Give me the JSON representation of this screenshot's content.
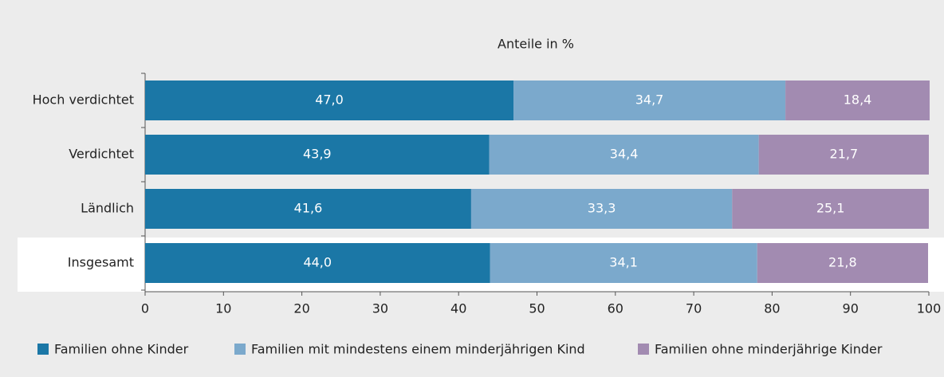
{
  "chart_data": {
    "type": "stacked_barh",
    "title": "Anteile in %",
    "categories": [
      "Hoch verdichtet",
      "Verdichtet",
      "Ländlich",
      "Insgesamt"
    ],
    "series": [
      {
        "name": "Familien ohne Kinder",
        "color": "#1b77a6",
        "values": [
          47.0,
          43.9,
          41.6,
          44.0
        ],
        "value_labels": [
          "47,0",
          "43,9",
          "41,6",
          "44,0"
        ]
      },
      {
        "name": "Familien mit mindestens einem minderjährigen Kind",
        "color": "#7ba9cc",
        "values": [
          34.7,
          34.4,
          33.3,
          34.1
        ],
        "value_labels": [
          "34,7",
          "34,4",
          "33,3",
          "34,1"
        ]
      },
      {
        "name": "Familien ohne minderjährige Kinder",
        "color": "#a28bb1",
        "values": [
          18.4,
          21.7,
          25.1,
          21.8
        ],
        "value_labels": [
          "18,4",
          "21,7",
          "25,1",
          "21,8"
        ]
      }
    ],
    "xlim": [
      0,
      100
    ],
    "xticks": [
      0,
      10,
      20,
      30,
      40,
      50,
      60,
      70,
      80,
      90,
      100
    ]
  }
}
